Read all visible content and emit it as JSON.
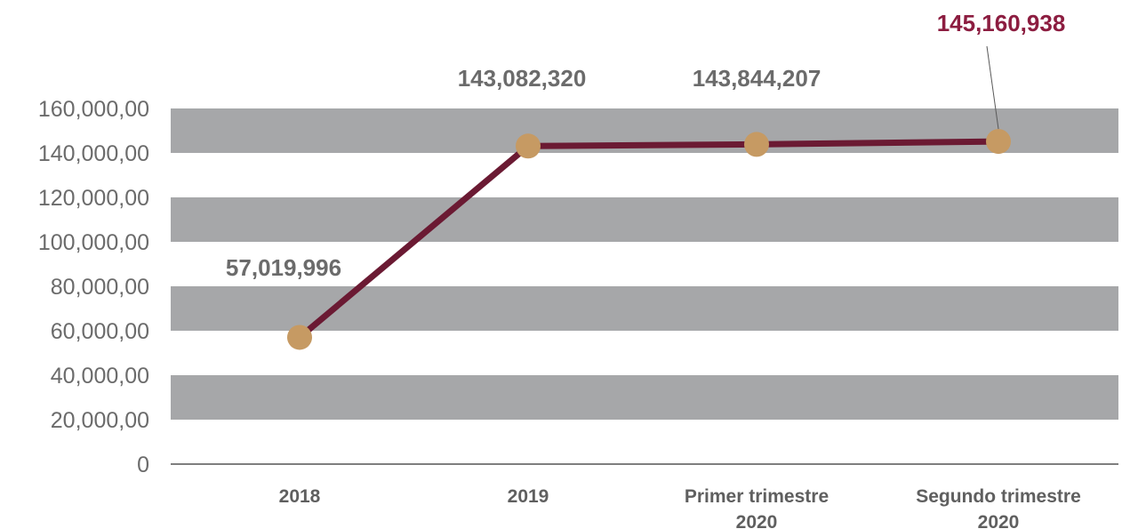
{
  "chart_data": {
    "type": "line",
    "categories": [
      [
        "2018"
      ],
      [
        "2019"
      ],
      [
        "Primer trimestre",
        "2020"
      ],
      [
        "Segundo trimestre",
        "2020"
      ]
    ],
    "values": [
      57019996,
      143082320,
      143844207,
      145160938
    ],
    "data_labels": [
      "57,019,996",
      "143,082,320",
      "143,844,207",
      "145,160,938"
    ],
    "highlighted_label_index": 3,
    "y_ticks": [
      "0",
      "20,000,00",
      "40,000,00",
      "60,000,00",
      "80,000,00",
      "100,000,00",
      "120,000,00",
      "140,000,00",
      "160,000,00"
    ],
    "ylim": [
      0,
      160000000
    ],
    "title": "",
    "xlabel": "",
    "ylabel": "",
    "grid": "alternating horizontal bands",
    "legend": "none",
    "colors": {
      "line": "#6b1a33",
      "marker": "#c69a63",
      "band": "#a6a7a9",
      "highlight_label": "#8c1d40",
      "axis": "#7f7f7f"
    }
  }
}
